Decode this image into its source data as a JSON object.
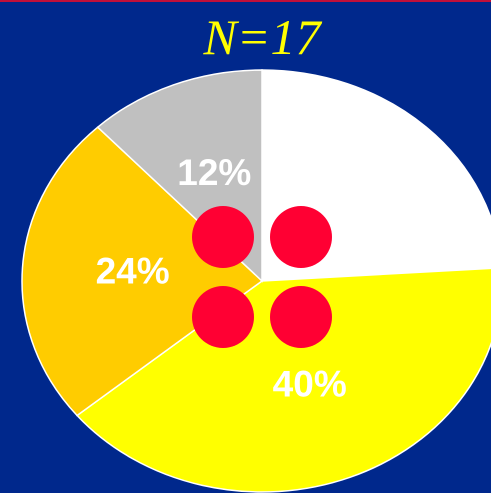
{
  "chart_data": {
    "type": "pie",
    "title": "N=17",
    "values": [
      24,
      40,
      24,
      12
    ],
    "value_labels": [
      null,
      "40%",
      "24%",
      "12%"
    ],
    "colors": [
      "#ffffff",
      "#ffff00",
      "#ffcc00",
      "#c0c0c0"
    ]
  }
}
